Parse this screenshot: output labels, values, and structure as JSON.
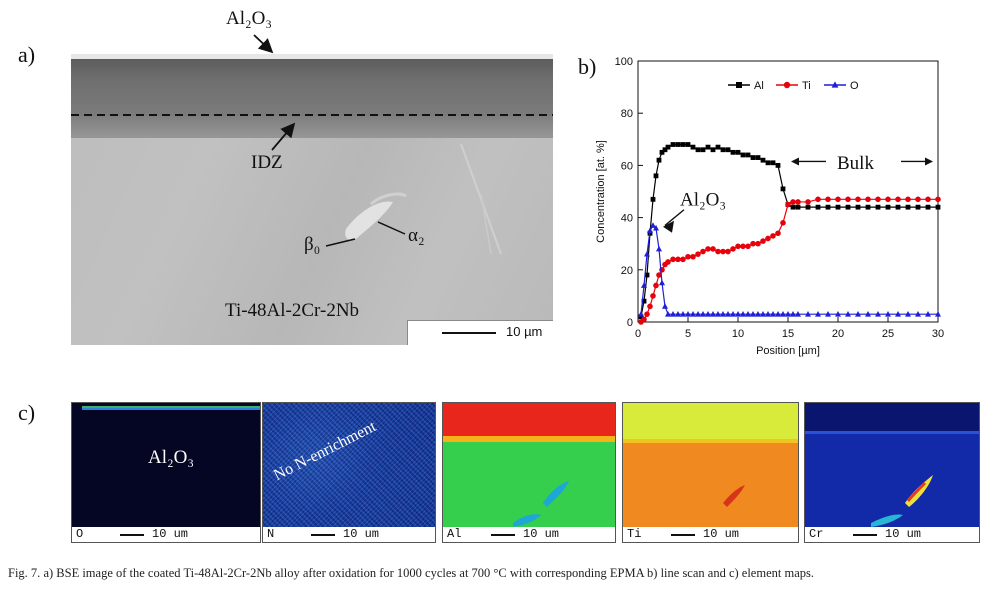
{
  "panel_labels": {
    "a": "a)",
    "b": "b)",
    "c": "c)"
  },
  "panel_a": {
    "oxide_label": "Al₂O₃",
    "idz_label": "IDZ",
    "beta0_label": "β₀",
    "alpha2_label": "α₂",
    "alloy_label": "Ti-48Al-2Cr-2Nb",
    "scale_text": "10 µm"
  },
  "chart_data": {
    "type": "line",
    "title": "",
    "xlabel": "Position [µm]",
    "ylabel": "Concentration [at. %]",
    "xlim": [
      0,
      30
    ],
    "ylim": [
      0,
      100
    ],
    "xticks": [
      0,
      5,
      10,
      15,
      20,
      25,
      30
    ],
    "yticks": [
      0,
      20,
      40,
      60,
      80,
      100
    ],
    "legend_position": "top",
    "annotations": [
      "Al₂O₃",
      "Bulk"
    ],
    "series": [
      {
        "name": "Al",
        "color": "#000000",
        "marker": "square",
        "x": [
          0.3,
          0.6,
          0.9,
          1.2,
          1.5,
          1.8,
          2.1,
          2.4,
          2.7,
          3.0,
          3.5,
          4.0,
          4.5,
          5.0,
          5.5,
          6.0,
          6.5,
          7.0,
          7.5,
          8.0,
          8.5,
          9.0,
          9.5,
          10.0,
          10.5,
          11.0,
          11.5,
          12.0,
          12.5,
          13.0,
          13.5,
          14.0,
          14.5,
          15.0,
          15.5,
          16.0,
          17,
          18,
          19,
          20,
          21,
          22,
          23,
          24,
          25,
          26,
          27,
          28,
          29,
          30
        ],
        "y": [
          2,
          8,
          18,
          34,
          47,
          56,
          62,
          65,
          66,
          67,
          68,
          68,
          68,
          68,
          67,
          66,
          66,
          67,
          66,
          67,
          66,
          66,
          65,
          65,
          64,
          64,
          63,
          63,
          62,
          61,
          61,
          60,
          51,
          45,
          44,
          44,
          44,
          44,
          44,
          44,
          44,
          44,
          44,
          44,
          44,
          44,
          44,
          44,
          44,
          44
        ]
      },
      {
        "name": "Ti",
        "color": "#e8000b",
        "marker": "circle",
        "x": [
          0.3,
          0.6,
          0.9,
          1.2,
          1.5,
          1.8,
          2.1,
          2.4,
          2.7,
          3.0,
          3.5,
          4.0,
          4.5,
          5.0,
          5.5,
          6.0,
          6.5,
          7.0,
          7.5,
          8.0,
          8.5,
          9.0,
          9.5,
          10.0,
          10.5,
          11.0,
          11.5,
          12.0,
          12.5,
          13.0,
          13.5,
          14.0,
          14.5,
          15.0,
          15.5,
          16.0,
          17,
          18,
          19,
          20,
          21,
          22,
          23,
          24,
          25,
          26,
          27,
          28,
          29,
          30
        ],
        "y": [
          0,
          1,
          3,
          6,
          10,
          14,
          18,
          20,
          22,
          23,
          24,
          24,
          24,
          25,
          25,
          26,
          27,
          28,
          28,
          27,
          27,
          27,
          28,
          29,
          29,
          29,
          30,
          30,
          31,
          32,
          33,
          34,
          38,
          45,
          46,
          46,
          46,
          47,
          47,
          47,
          47,
          47,
          47,
          47,
          47,
          47,
          47,
          47,
          47,
          47
        ]
      },
      {
        "name": "O",
        "color": "#1f1fd6",
        "marker": "triangle",
        "x": [
          0.3,
          0.6,
          0.9,
          1.2,
          1.5,
          1.8,
          2.1,
          2.4,
          2.7,
          3.0,
          3.5,
          4.0,
          4.5,
          5.0,
          5.5,
          6.0,
          6.5,
          7.0,
          7.5,
          8.0,
          8.5,
          9.0,
          9.5,
          10.0,
          10.5,
          11.0,
          11.5,
          12.0,
          12.5,
          13.0,
          13.5,
          14.0,
          14.5,
          15.0,
          15.5,
          16.0,
          17,
          18,
          19,
          20,
          21,
          22,
          23,
          24,
          25,
          26,
          27,
          28,
          29,
          30
        ],
        "y": [
          3,
          14,
          26,
          35,
          37,
          36,
          28,
          15,
          6,
          3,
          3,
          3,
          3,
          3,
          3,
          3,
          3,
          3,
          3,
          3,
          3,
          3,
          3,
          3,
          3,
          3,
          3,
          3,
          3,
          3,
          3,
          3,
          3,
          3,
          3,
          3,
          3,
          3,
          3,
          3,
          3,
          3,
          3,
          3,
          3,
          3,
          3,
          3,
          3,
          3
        ]
      }
    ]
  },
  "panel_c": {
    "oxide_label": "Al₂O₃",
    "n_label": "No N-enrichment",
    "maps": [
      {
        "element": "O",
        "scale": "10 um"
      },
      {
        "element": "N",
        "scale": "10 um"
      },
      {
        "element": "Al",
        "scale": "10 um"
      },
      {
        "element": "Ti",
        "scale": "10 um"
      },
      {
        "element": "Cr",
        "scale": "10 um"
      }
    ]
  },
  "caption": {
    "fig": "Fig. 7.",
    "text": "a) BSE image of the coated Ti-48Al-2Cr-2Nb alloy after oxidation for 1000 cycles at 700 °C with corresponding EPMA b) line scan and c) element maps."
  }
}
